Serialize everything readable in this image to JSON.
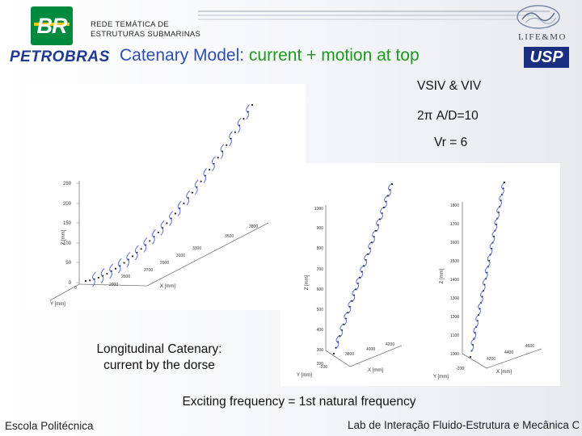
{
  "header": {
    "org_line1": "REDE TEMÁTICA DE",
    "org_line2": "ESTRUTURAS SUBMARINAS",
    "brand_br": "BR",
    "brand_petrobras": "PETROBRAS",
    "title_prefix": "Catenary Model: ",
    "title_highlight": "current + motion at top",
    "lab_name": "LIFE&MO",
    "usp": "USP"
  },
  "params": {
    "vsiv": "VSIV & VIV",
    "amp": "2π A/D=10",
    "vr": "Vr = 6"
  },
  "plots": {
    "left": {
      "z_label": "Z [mm]",
      "x_label": "X [mm]",
      "y_label": "Y [mm]",
      "z_ticks": [
        "250",
        "200",
        "150",
        "100",
        "50",
        "0"
      ],
      "x_ticks": [
        "2000",
        "2500",
        "2700",
        "2900",
        "3100",
        "3300",
        "3500",
        "3800"
      ],
      "origin_tick": "0"
    },
    "middle": {
      "z_label": "Z [mm]",
      "x_label": "X [mm]",
      "y_label": "Y [mm]",
      "z_ticks": [
        "1000",
        "900",
        "800",
        "700",
        "600",
        "500",
        "400",
        "300",
        "200"
      ],
      "x_ticks": [
        "3800",
        "4000",
        "4200"
      ],
      "y_ticks": [
        "-200"
      ]
    },
    "right": {
      "z_label": "Z [mm]",
      "x_label": "X [mm]",
      "y_label": "Y [mm]",
      "z_ticks": [
        "1800",
        "1700",
        "1600",
        "1500",
        "1400",
        "1300",
        "1200",
        "1100",
        "1000"
      ],
      "x_ticks": [
        "4200",
        "4400",
        "4600"
      ],
      "y_ticks": [
        "-200"
      ]
    }
  },
  "captions": {
    "long_line1": "Longitudinal Catenary:",
    "long_line2": "current by the dorse",
    "exciting": "Exciting frequency = 1st natural frequency"
  },
  "footer": {
    "left": "Escola Politécnica",
    "right": "Lab de Interação Fluido-Estrutura e Mecânica Offshore"
  },
  "colors": {
    "title_blue": "#2e4fb3",
    "title_green": "#1f9a1f",
    "petrobras_green": "#008a3e",
    "riser_blue": "#5a6fd6"
  }
}
